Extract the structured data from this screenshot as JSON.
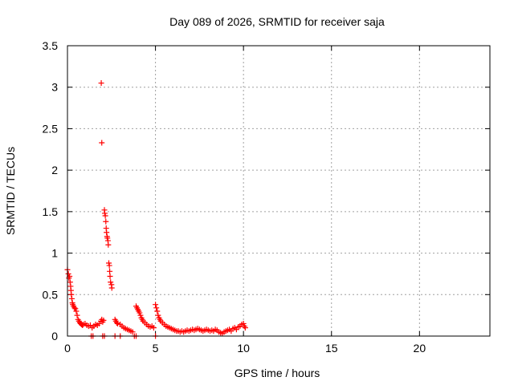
{
  "chart_data": {
    "type": "scatter",
    "title": "Day 089 of 2026, SRMTID for receiver saja",
    "xlabel": "GPS time / hours",
    "ylabel": "SRMTID / TECUs",
    "xlim": [
      0,
      24
    ],
    "ylim": [
      0,
      3.5
    ],
    "xticks": [
      0,
      5,
      10,
      15,
      20
    ],
    "xtick_labels": [
      "0",
      "5",
      "10",
      "15",
      "20"
    ],
    "yticks": [
      0,
      0.5,
      1,
      1.5,
      2,
      2.5,
      3,
      3.5
    ],
    "ytick_labels": [
      "0",
      "0.5",
      "1",
      "1.5",
      "2",
      "2.5",
      "3",
      "3.5"
    ],
    "grid": true,
    "marker": "+",
    "series": [
      {
        "name": "SRMTID",
        "color": "#ff0000",
        "points": [
          [
            0.0,
            0.8
          ],
          [
            0.05,
            0.75
          ],
          [
            0.08,
            0.7
          ],
          [
            0.12,
            0.72
          ],
          [
            0.15,
            0.65
          ],
          [
            0.18,
            0.6
          ],
          [
            0.2,
            0.55
          ],
          [
            0.22,
            0.5
          ],
          [
            0.25,
            0.45
          ],
          [
            0.28,
            0.4
          ],
          [
            0.3,
            0.38
          ],
          [
            0.35,
            0.36
          ],
          [
            0.4,
            0.34
          ],
          [
            0.45,
            0.33
          ],
          [
            0.5,
            0.3
          ],
          [
            0.55,
            0.25
          ],
          [
            0.6,
            0.2
          ],
          [
            0.65,
            0.18
          ],
          [
            0.7,
            0.16
          ],
          [
            0.75,
            0.15
          ],
          [
            0.8,
            0.14
          ],
          [
            0.85,
            0.13
          ],
          [
            0.9,
            0.14
          ],
          [
            1.0,
            0.15
          ],
          [
            1.1,
            0.13
          ],
          [
            1.2,
            0.12
          ],
          [
            1.3,
            0.13
          ],
          [
            1.4,
            0.1
          ],
          [
            1.5,
            0.12
          ],
          [
            1.6,
            0.14
          ],
          [
            1.7,
            0.13
          ],
          [
            1.8,
            0.15
          ],
          [
            1.9,
            0.18
          ],
          [
            1.95,
            0.2
          ],
          [
            2.0,
            0.17
          ],
          [
            2.05,
            0.19
          ],
          [
            1.92,
            3.05
          ],
          [
            1.95,
            2.33
          ],
          [
            2.1,
            1.52
          ],
          [
            2.12,
            1.48
          ],
          [
            2.15,
            1.45
          ],
          [
            2.18,
            1.38
          ],
          [
            2.2,
            1.3
          ],
          [
            2.22,
            1.25
          ],
          [
            2.25,
            1.2
          ],
          [
            2.27,
            1.18
          ],
          [
            2.3,
            1.15
          ],
          [
            2.32,
            1.1
          ],
          [
            2.35,
            0.88
          ],
          [
            2.38,
            0.85
          ],
          [
            2.4,
            0.78
          ],
          [
            2.42,
            0.72
          ],
          [
            2.45,
            0.65
          ],
          [
            2.5,
            0.62
          ],
          [
            2.52,
            0.58
          ],
          [
            2.7,
            0.2
          ],
          [
            2.75,
            0.18
          ],
          [
            2.8,
            0.16
          ],
          [
            2.85,
            0.15
          ],
          [
            3.0,
            0.14
          ],
          [
            3.1,
            0.12
          ],
          [
            3.2,
            0.1
          ],
          [
            3.3,
            0.09
          ],
          [
            3.4,
            0.08
          ],
          [
            3.5,
            0.07
          ],
          [
            3.6,
            0.06
          ],
          [
            3.7,
            0.05
          ],
          [
            3.9,
            0.36
          ],
          [
            3.95,
            0.34
          ],
          [
            4.0,
            0.32
          ],
          [
            4.05,
            0.3
          ],
          [
            4.1,
            0.28
          ],
          [
            4.15,
            0.25
          ],
          [
            4.2,
            0.22
          ],
          [
            4.25,
            0.2
          ],
          [
            4.3,
            0.18
          ],
          [
            4.4,
            0.16
          ],
          [
            4.5,
            0.14
          ],
          [
            4.6,
            0.12
          ],
          [
            4.7,
            0.11
          ],
          [
            4.8,
            0.12
          ],
          [
            4.9,
            0.1
          ],
          [
            5.0,
            0.38
          ],
          [
            5.05,
            0.34
          ],
          [
            5.1,
            0.3
          ],
          [
            5.15,
            0.25
          ],
          [
            5.2,
            0.22
          ],
          [
            5.25,
            0.2
          ],
          [
            5.3,
            0.18
          ],
          [
            5.4,
            0.16
          ],
          [
            5.5,
            0.14
          ],
          [
            5.6,
            0.12
          ],
          [
            5.7,
            0.11
          ],
          [
            5.8,
            0.1
          ],
          [
            5.9,
            0.09
          ],
          [
            6.0,
            0.08
          ],
          [
            6.1,
            0.07
          ],
          [
            6.2,
            0.06
          ],
          [
            6.3,
            0.06
          ],
          [
            6.4,
            0.05
          ],
          [
            6.5,
            0.06
          ],
          [
            6.6,
            0.05
          ],
          [
            6.7,
            0.06
          ],
          [
            6.8,
            0.07
          ],
          [
            6.9,
            0.06
          ],
          [
            7.0,
            0.07
          ],
          [
            7.1,
            0.08
          ],
          [
            7.2,
            0.07
          ],
          [
            7.3,
            0.08
          ],
          [
            7.4,
            0.09
          ],
          [
            7.5,
            0.08
          ],
          [
            7.6,
            0.07
          ],
          [
            7.7,
            0.06
          ],
          [
            7.8,
            0.07
          ],
          [
            7.9,
            0.08
          ],
          [
            8.0,
            0.07
          ],
          [
            8.1,
            0.06
          ],
          [
            8.2,
            0.07
          ],
          [
            8.3,
            0.06
          ],
          [
            8.4,
            0.08
          ],
          [
            8.5,
            0.07
          ],
          [
            8.6,
            0.05
          ],
          [
            8.7,
            0.04
          ],
          [
            8.8,
            0.03
          ],
          [
            8.9,
            0.05
          ],
          [
            9.0,
            0.06
          ],
          [
            9.1,
            0.07
          ],
          [
            9.2,
            0.08
          ],
          [
            9.3,
            0.06
          ],
          [
            9.4,
            0.09
          ],
          [
            9.5,
            0.1
          ],
          [
            9.6,
            0.08
          ],
          [
            9.7,
            0.11
          ],
          [
            9.8,
            0.12
          ],
          [
            9.9,
            0.14
          ],
          [
            10.0,
            0.15
          ],
          [
            10.05,
            0.12
          ],
          [
            10.1,
            0.1
          ],
          [
            1.35,
            0.0
          ],
          [
            1.45,
            0.0
          ],
          [
            2.0,
            0.0
          ],
          [
            2.1,
            0.0
          ],
          [
            2.7,
            0.0
          ],
          [
            3.0,
            0.0
          ],
          [
            3.8,
            0.0
          ],
          [
            3.9,
            0.0
          ],
          [
            5.0,
            0.0
          ]
        ]
      }
    ]
  }
}
